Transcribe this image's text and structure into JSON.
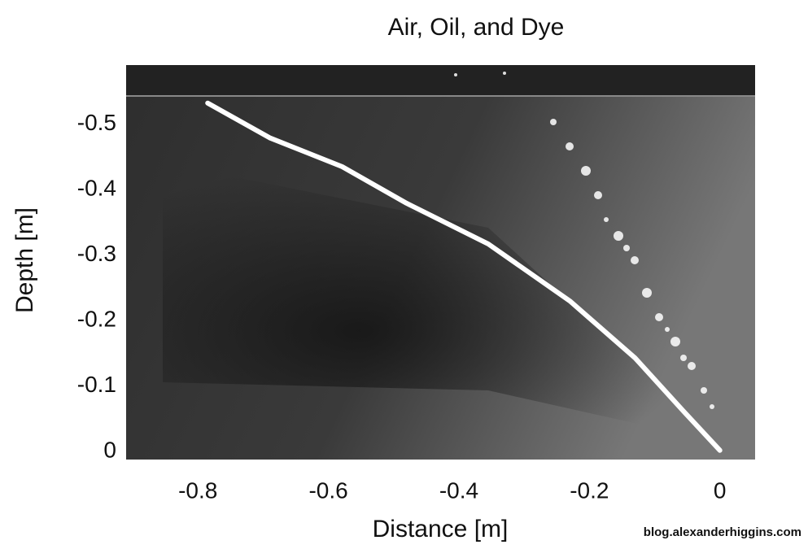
{
  "chart_data": {
    "type": "line",
    "title": "Air, Oil, and Dye",
    "x_label": "Distance  [m]",
    "y_label": "Depth  [m]",
    "x": [
      -0.785,
      -0.69,
      -0.579,
      -0.48,
      -0.355,
      -0.23,
      -0.13,
      -0.056,
      0
    ],
    "series": [
      {
        "color": "#ffffff",
        "values": [
          -0.532,
          -0.479,
          -0.435,
          -0.379,
          -0.317,
          -0.23,
          -0.143,
          -0.062,
          -0.002
        ]
      }
    ],
    "xlim": [
      -0.91,
      0.054
    ],
    "ylim": [
      0.012,
      -0.59
    ],
    "xticks": [
      -0.8,
      -0.6,
      -0.4,
      -0.2,
      0
    ],
    "yticks": [
      0,
      -0.1,
      -0.2,
      -0.3,
      -0.4,
      -0.5
    ],
    "grid": false
  },
  "watermark": "blog.alexanderhiggins.com"
}
